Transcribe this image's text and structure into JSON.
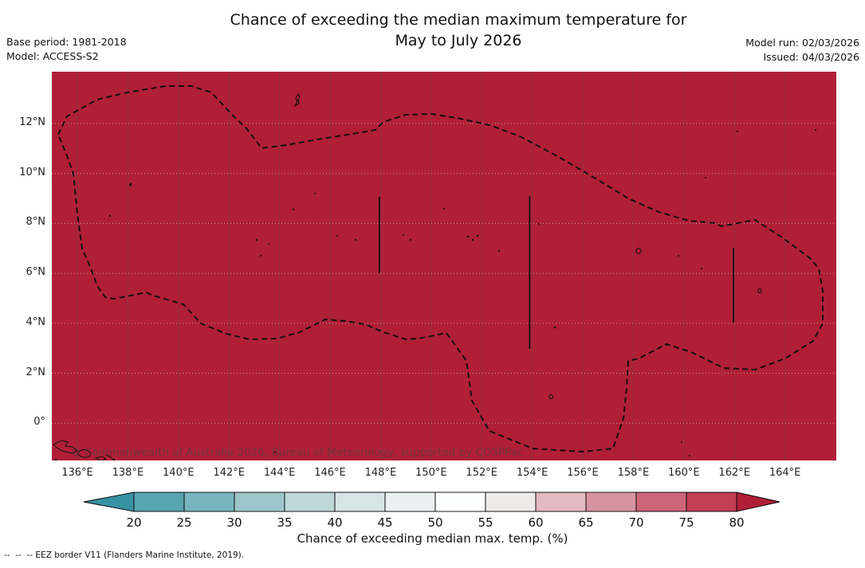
{
  "title": {
    "line1": "Chance of exceeding the median maximum temperature for",
    "line2": "May to July 2026"
  },
  "meta_left": {
    "base_period": "Base period: 1981-2018",
    "model": "Model: ACCESS-S2"
  },
  "meta_right": {
    "model_run": "Model run: 02/03/2026",
    "issued": "Issued: 04/03/2026"
  },
  "map": {
    "watermark": "© Commonwealth of Australia 2026, Bureau of Meteorology, supported by COSPPac",
    "fill_color": "#b01f37",
    "x_ticks": [
      "136°E",
      "138°E",
      "140°E",
      "142°E",
      "144°E",
      "146°E",
      "148°E",
      "150°E",
      "152°E",
      "154°E",
      "156°E",
      "158°E",
      "160°E",
      "162°E",
      "164°E"
    ],
    "y_ticks": [
      "12°N",
      "10°N",
      "8°N",
      "6°N",
      "4°N",
      "2°N",
      "0°"
    ]
  },
  "colorbar": {
    "caption": "Chance of exceeding median max. temp. (%)",
    "tick_labels": [
      "20",
      "25",
      "30",
      "35",
      "40",
      "45",
      "50",
      "55",
      "60",
      "65",
      "70",
      "75",
      "80"
    ],
    "segment_colors": [
      "#57a5b1",
      "#79b5be",
      "#9dc6cb",
      "#bfd7d9",
      "#d8e5e6",
      "#ebf0f0",
      "#fdfefe",
      "#edeaea",
      "#e2b9bf",
      "#d893a0",
      "#cb6577",
      "#c23f54"
    ],
    "arrow_left_color": "#3792a3",
    "arrow_right_color": "#b01f37"
  },
  "footnote": "--  --  -- EEZ border V11 (Flanders Marine Institute, 2019).",
  "chart_data": {
    "type": "heatmap",
    "title": "Chance of exceeding the median maximum temperature for May to July 2026",
    "colorbar_label": "Chance of exceeding median max. temp. (%)",
    "colorbar_tick_values": [
      20,
      25,
      30,
      35,
      40,
      45,
      50,
      55,
      60,
      65,
      70,
      75,
      80
    ],
    "x_axis_ticks_lon_east": [
      136,
      138,
      140,
      142,
      144,
      146,
      148,
      150,
      152,
      154,
      156,
      158,
      160,
      162,
      164
    ],
    "y_axis_ticks_lat_north": [
      12,
      10,
      8,
      6,
      4,
      2,
      0
    ],
    "field_summary": "Entire mapped EEZ region shaded in the >80% class (dark crimson); dashed EEZ border V11 outline with three internal meridian divider segments near 148E, 154E and 162E",
    "base_period": "1981-2018",
    "model": "ACCESS-S2",
    "model_run": "02/03/2026",
    "issued": "04/03/2026"
  }
}
